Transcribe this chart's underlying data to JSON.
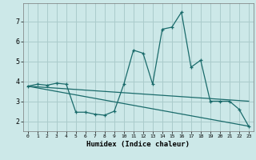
{
  "xlabel": "Humidex (Indice chaleur)",
  "bg_color": "#cce8e8",
  "grid_color": "#aacccc",
  "line_color": "#1a6b6b",
  "xlim": [
    -0.5,
    23.5
  ],
  "ylim": [
    1.5,
    7.9
  ],
  "xticks": [
    0,
    1,
    2,
    3,
    4,
    5,
    6,
    7,
    8,
    9,
    10,
    11,
    12,
    13,
    14,
    15,
    16,
    17,
    18,
    19,
    20,
    21,
    22,
    23
  ],
  "yticks": [
    2,
    3,
    4,
    5,
    6,
    7
  ],
  "series": [
    {
      "x": [
        0,
        1,
        2,
        3,
        4,
        5,
        6,
        7,
        8,
        9,
        10,
        11,
        12,
        13,
        14,
        15,
        16,
        17,
        18,
        19,
        20,
        21,
        22,
        23
      ],
      "y": [
        3.75,
        3.85,
        3.8,
        3.9,
        3.85,
        2.45,
        2.45,
        2.35,
        2.3,
        2.5,
        3.85,
        5.55,
        5.4,
        3.85,
        6.6,
        6.7,
        7.45,
        4.7,
        5.05,
        3.0,
        3.0,
        3.0,
        2.6,
        1.75
      ],
      "marker": "+"
    },
    {
      "x": [
        0,
        23
      ],
      "y": [
        3.75,
        3.0
      ],
      "marker": null
    },
    {
      "x": [
        0,
        23
      ],
      "y": [
        3.75,
        1.75
      ],
      "marker": null
    }
  ]
}
